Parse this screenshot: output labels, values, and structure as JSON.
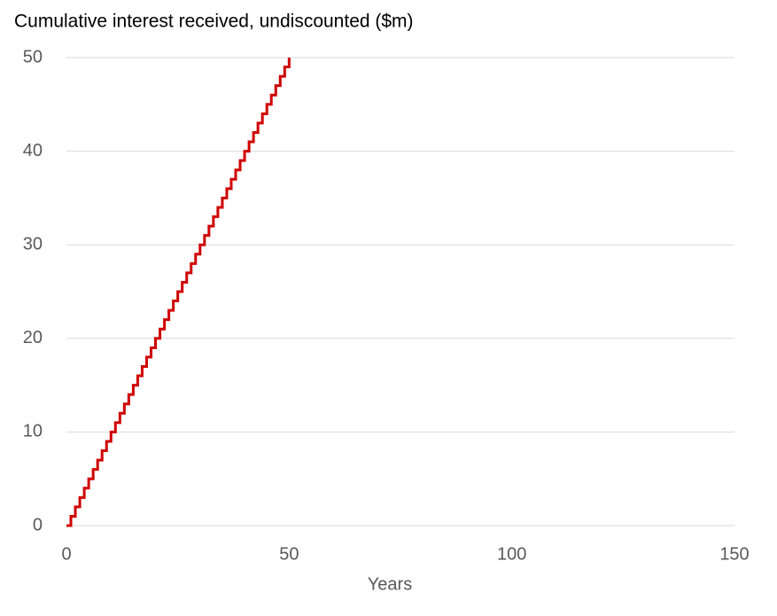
{
  "chart_data": {
    "type": "line",
    "step": "after",
    "title": "Cumulative interest received, undiscounted ($m)",
    "x_label": "Years",
    "x": [
      0,
      1,
      2,
      3,
      4,
      5,
      6,
      7,
      8,
      9,
      10,
      11,
      12,
      13,
      14,
      15,
      16,
      17,
      18,
      19,
      20,
      21,
      22,
      23,
      24,
      25,
      26,
      27,
      28,
      29,
      30,
      31,
      32,
      33,
      34,
      35,
      36,
      37,
      38,
      39,
      40,
      41,
      42,
      43,
      44,
      45,
      46,
      47,
      48,
      49,
      50
    ],
    "values": [
      0,
      1,
      2,
      3,
      4,
      5,
      6,
      7,
      8,
      9,
      10,
      11,
      12,
      13,
      14,
      15,
      16,
      17,
      18,
      19,
      20,
      21,
      22,
      23,
      24,
      25,
      26,
      27,
      28,
      29,
      30,
      31,
      32,
      33,
      34,
      35,
      36,
      37,
      38,
      39,
      40,
      41,
      42,
      43,
      44,
      45,
      46,
      47,
      48,
      49,
      50
    ],
    "color": "#d00000",
    "xlim": [
      0,
      150
    ],
    "xticks": [
      0,
      50,
      100,
      150
    ],
    "ylim": [
      0,
      50
    ],
    "yticks": [
      0,
      10,
      20,
      30,
      40,
      50
    ],
    "grid": true
  }
}
